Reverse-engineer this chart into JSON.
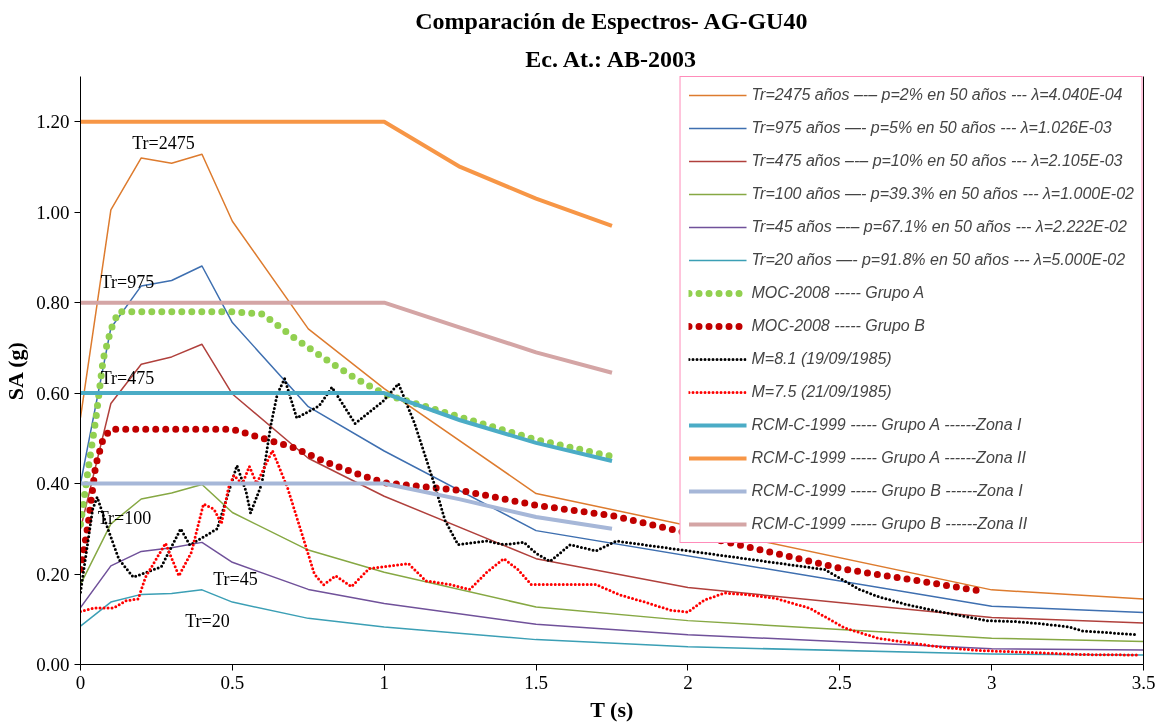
{
  "chart_data": {
    "type": "line",
    "title": "Comparación de Espectros- AG-GU40",
    "subtitle": "Ec. At.: AB-2003",
    "xlabel": "T (s)",
    "ylabel": "SA (g)",
    "xlim": [
      0,
      3.5
    ],
    "xticks": [
      0,
      0.5,
      1,
      1.5,
      2,
      2.5,
      3,
      3.5
    ],
    "ylim": [
      0,
      1.3
    ],
    "yticks": [
      {
        "value": 0,
        "label": "0.00"
      },
      {
        "value": 0.2,
        "label": "0.20"
      },
      {
        "value": 0.4,
        "label": "0.40"
      },
      {
        "value": 0.6,
        "label": "0.60"
      },
      {
        "value": 0.8,
        "label": "0.80"
      },
      {
        "value": 1.0,
        "label": "1.00"
      },
      {
        "value": 1.2,
        "label": "1.20"
      }
    ],
    "legend": "top right",
    "series": [
      {
        "name": "Tr=2475 años –-– p=2% en 50 años --- λ=4.040E-04",
        "color": "#dd7b2e",
        "line_style": "solid",
        "x": [
          0,
          0.1,
          0.2,
          0.3,
          0.4,
          0.5,
          0.75,
          1,
          1.5,
          3,
          3.5
        ],
        "values": [
          0.546,
          1.005,
          1.12,
          1.108,
          1.128,
          0.98,
          0.742,
          0.61,
          0.378,
          0.165,
          0.145
        ]
      },
      {
        "name": "Tr=975 años —- p=5% en 50 años --- λ=1.026E-03",
        "color": "#3e6fb0",
        "line_style": "solid",
        "x": [
          0,
          0.1,
          0.2,
          0.3,
          0.4,
          0.5,
          0.75,
          1,
          1.5,
          3,
          3.5
        ],
        "values": [
          0.4,
          0.744,
          0.837,
          0.849,
          0.881,
          0.756,
          0.57,
          0.472,
          0.296,
          0.129,
          0.115
        ]
      },
      {
        "name": "Tr=475 años –-– p=10% en 50 años --- λ=2.105E-03",
        "color": "#b0403c",
        "line_style": "solid",
        "x": [
          0,
          0.1,
          0.2,
          0.3,
          0.4,
          0.5,
          0.75,
          1,
          1.5,
          2,
          3,
          3.5
        ],
        "values": [
          0.3,
          0.577,
          0.664,
          0.68,
          0.708,
          0.598,
          0.456,
          0.372,
          0.234,
          0.17,
          0.104,
          0.092
        ]
      },
      {
        "name": "Tr=100 años —- p=39.3% en 50 años --- λ=1.000E-02",
        "color": "#86a843",
        "line_style": "solid",
        "x": [
          0,
          0.1,
          0.2,
          0.3,
          0.4,
          0.5,
          0.75,
          1,
          1.5,
          2,
          3,
          3.5
        ],
        "values": [
          0.177,
          0.311,
          0.366,
          0.379,
          0.398,
          0.336,
          0.253,
          0.204,
          0.127,
          0.097,
          0.058,
          0.051
        ]
      },
      {
        "name": "Tr=45 años –-– p=67.1% en 50 años --- λ=2.222E-02",
        "color": "#70519a",
        "line_style": "solid",
        "x": [
          0,
          0.1,
          0.2,
          0.3,
          0.4,
          0.5,
          0.75,
          1,
          1.5,
          2,
          3,
          3.5
        ],
        "values": [
          0.126,
          0.218,
          0.25,
          0.258,
          0.27,
          0.226,
          0.166,
          0.135,
          0.089,
          0.066,
          0.035,
          0.032
        ]
      },
      {
        "name": "Tr=20 años —- p=91.8% en 50 años --- λ=5.000E-02",
        "color": "#3b9fb5",
        "line_style": "solid",
        "x": [
          0,
          0.1,
          0.2,
          0.3,
          0.4,
          0.5,
          0.75,
          1,
          1.5,
          2,
          3,
          3.5
        ],
        "values": [
          0.085,
          0.138,
          0.155,
          0.157,
          0.165,
          0.138,
          0.102,
          0.083,
          0.055,
          0.039,
          0.023,
          0.021
        ]
      },
      {
        "name": "MOC-2008 ----- Grupo A",
        "color": "#92d050",
        "line_style": "dotted",
        "x": [
          0,
          0.025,
          0.05,
          0.075,
          0.1,
          0.125,
          0.5,
          0.6,
          0.7,
          0.8,
          0.9,
          1,
          1.25,
          1.5,
          1.75
        ],
        "values": [
          0.31,
          0.43,
          0.54,
          0.676,
          0.74,
          0.78,
          0.78,
          0.775,
          0.724,
          0.678,
          0.635,
          0.598,
          0.547,
          0.497,
          0.46
        ]
      },
      {
        "name": "MOC-2008 ----- Grupo B",
        "color": "#c00000",
        "line_style": "dotted",
        "x": [
          0,
          0.025,
          0.05,
          0.075,
          0.1,
          0.5,
          0.6,
          0.7,
          0.8,
          0.9,
          1,
          1.25,
          1.5,
          1.75,
          2.52,
          2.74,
          2.95
        ],
        "values": [
          0.21,
          0.31,
          0.44,
          0.5,
          0.52,
          0.52,
          0.5,
          0.48,
          0.45,
          0.424,
          0.402,
          0.385,
          0.352,
          0.329,
          0.21,
          0.187,
          0.164
        ]
      },
      {
        "name": "M=8.1 (19/09/1985)",
        "color": "#000000",
        "line_style": "dotted",
        "x": [
          0,
          0.04,
          0.055,
          0.09,
          0.127,
          0.174,
          0.266,
          0.33,
          0.36,
          0.4,
          0.45,
          0.515,
          0.545,
          0.56,
          0.597,
          0.626,
          0.648,
          0.672,
          0.712,
          0.786,
          0.828,
          0.904,
          0.996,
          1.047,
          1.1,
          1.137,
          1.17,
          1.2,
          1.243,
          1.338,
          1.394,
          1.46,
          1.5,
          1.546,
          1.613,
          1.697,
          1.764,
          2.45,
          2.515,
          2.565,
          2.627,
          2.717,
          2.807,
          2.896,
          2.986,
          3.076,
          3.165,
          3.255,
          3.3,
          3.48
        ],
        "values": [
          0.16,
          0.343,
          0.37,
          0.3,
          0.232,
          0.193,
          0.216,
          0.3,
          0.264,
          0.28,
          0.3,
          0.44,
          0.383,
          0.335,
          0.4,
          0.527,
          0.598,
          0.632,
          0.545,
          0.572,
          0.613,
          0.533,
          0.582,
          0.621,
          0.533,
          0.457,
          0.388,
          0.319,
          0.265,
          0.273,
          0.265,
          0.27,
          0.246,
          0.228,
          0.265,
          0.251,
          0.273,
          0.21,
          0.185,
          0.166,
          0.15,
          0.133,
          0.12,
          0.108,
          0.097,
          0.095,
          0.09,
          0.083,
          0.074,
          0.066
        ]
      },
      {
        "name": "M=7.5 (21/09/1985)",
        "color": "#ff0000",
        "line_style": "dotted",
        "x": [
          0,
          0.046,
          0.11,
          0.15,
          0.19,
          0.214,
          0.28,
          0.324,
          0.365,
          0.405,
          0.44,
          0.464,
          0.487,
          0.505,
          0.533,
          0.556,
          0.58,
          0.632,
          0.682,
          0.73,
          0.77,
          0.8,
          0.84,
          0.892,
          0.95,
          1.0,
          1.08,
          1.137,
          1.215,
          1.282,
          1.338,
          1.394,
          1.44,
          1.484,
          1.55,
          1.697,
          1.775,
          1.853,
          1.943,
          2.0,
          2.055,
          2.122,
          2.2,
          2.29,
          2.403,
          2.515,
          2.627,
          2.74,
          2.85,
          2.96,
          3.076,
          3.3,
          3.48
        ],
        "values": [
          0.117,
          0.125,
          0.125,
          0.141,
          0.145,
          0.193,
          0.268,
          0.196,
          0.248,
          0.355,
          0.343,
          0.311,
          0.39,
          0.418,
          0.399,
          0.438,
          0.4,
          0.473,
          0.39,
          0.287,
          0.2,
          0.176,
          0.196,
          0.172,
          0.212,
          0.216,
          0.223,
          0.185,
          0.177,
          0.166,
          0.204,
          0.234,
          0.21,
          0.177,
          0.177,
          0.177,
          0.154,
          0.139,
          0.12,
          0.116,
          0.143,
          0.158,
          0.154,
          0.146,
          0.124,
          0.081,
          0.058,
          0.047,
          0.037,
          0.031,
          0.028,
          0.022,
          0.021
        ]
      },
      {
        "name": "RCM-C-1999 ----- Grupo A ------Zona I",
        "color": "#4bacc6",
        "line_style": "solid",
        "x": [
          0,
          1,
          1.25,
          1.5,
          1.75
        ],
        "values": [
          0.6,
          0.6,
          0.54,
          0.49,
          0.45
        ]
      },
      {
        "name": "RCM-C-1999 ----- Grupo A ------Zona II",
        "color": "#f79646",
        "line_style": "solid",
        "x": [
          0,
          1,
          1.25,
          1.5,
          1.75
        ],
        "values": [
          1.2,
          1.2,
          1.1,
          1.03,
          0.97
        ]
      },
      {
        "name": "RCM-C-1999 ----- Grupo B ------Zona I",
        "color": "#a6b7d8",
        "line_style": "solid",
        "x": [
          0,
          1,
          1.25,
          1.5,
          1.75
        ],
        "values": [
          0.4,
          0.4,
          0.365,
          0.326,
          0.3
        ]
      },
      {
        "name": "RCM-C-1999 ----- Grupo B ------Zona II",
        "color": "#d4a5a5",
        "line_style": "solid",
        "x": [
          0,
          1,
          1.25,
          1.5,
          1.75
        ],
        "values": [
          0.8,
          0.8,
          0.745,
          0.69,
          0.645
        ]
      }
    ],
    "annotations": [
      "Tr=2475",
      "Tr=975",
      "Tr=475",
      "Tr=100",
      "Tr=45",
      "Tr=20"
    ]
  }
}
